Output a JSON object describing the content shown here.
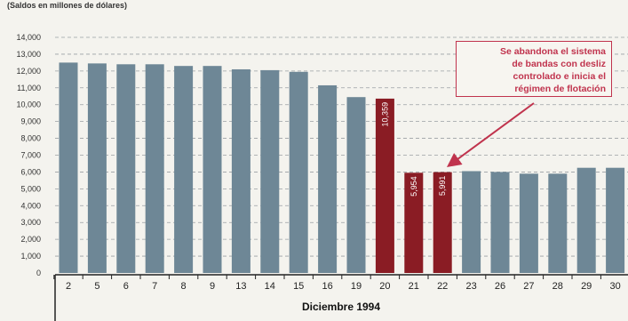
{
  "colors": {
    "bar": "#6e8796",
    "highlight": "#8a1c24",
    "accent": "#c0334d",
    "grid": "#9aa0a4"
  },
  "chart_data": {
    "type": "bar",
    "subtitle": "(Saldos en millones de dólares)",
    "xlabel": "Diciembre 1994",
    "ylabel": "",
    "ylim": [
      0,
      14000
    ],
    "yticks": [
      "14,000",
      "13,000",
      "12,000",
      "11,000",
      "10,000",
      "9,000",
      "8,000",
      "7,000",
      "6,000",
      "5,000",
      "4,000",
      "3,000",
      "2,000",
      "1,000",
      "0"
    ],
    "categories": [
      "2",
      "5",
      "6",
      "7",
      "8",
      "9",
      "13",
      "14",
      "15",
      "16",
      "19",
      "20",
      "21",
      "22",
      "23",
      "26",
      "27",
      "28",
      "29",
      "30"
    ],
    "values": [
      12500,
      12450,
      12400,
      12400,
      12300,
      12300,
      12100,
      12050,
      11950,
      11150,
      10450,
      10359,
      5954,
      5991,
      6050,
      6000,
      5900,
      5900,
      6250,
      6250
    ],
    "highlighted": [
      "20",
      "21",
      "22"
    ],
    "data_labels": {
      "20": "10,359",
      "21": "5,954",
      "22": "5,991"
    },
    "annotation": "Se abandona el sistema\nde bandas con desliz\ncontrolado e inicia el\nrégimen de flotación",
    "annotation_target": "22",
    "grid": true
  }
}
